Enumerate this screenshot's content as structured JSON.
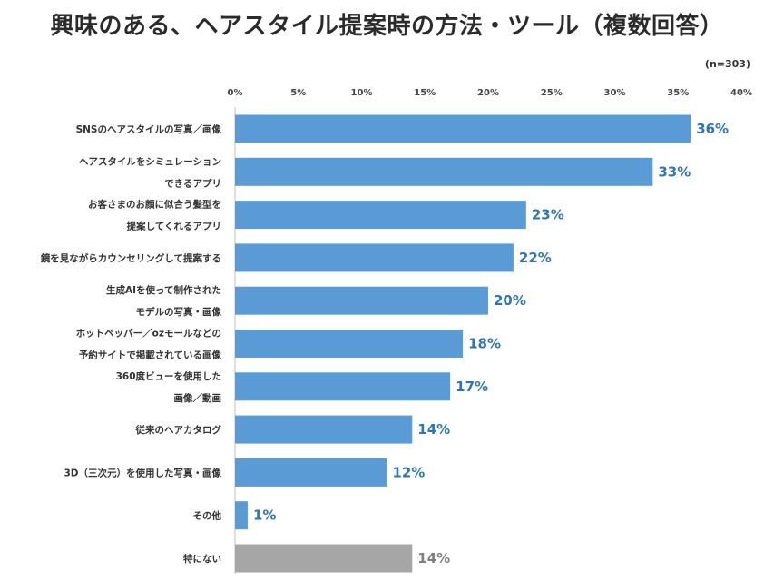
{
  "title": "興味のある、ヘアスタイル提案時の方法・ツール（複数回答）",
  "sample_note": "(n=303)",
  "colors": {
    "bar": "#5b9bd5",
    "bar_other": "#a6a6a6",
    "label": "#2e75b6",
    "label_other": "#7f7f7f",
    "axis": "#bfbfbf"
  },
  "chart_data": {
    "type": "bar",
    "orientation": "horizontal",
    "title": "興味のある、ヘアスタイル提案時の方法・ツール（複数回答）",
    "xlim": [
      0,
      40
    ],
    "xticks": [
      "0%",
      "5%",
      "10%",
      "15%",
      "20%",
      "25%",
      "30%",
      "35%",
      "40%"
    ],
    "grid": false,
    "categories": [
      [
        "SNSのヘアスタイルの写真／画像"
      ],
      [
        "ヘアスタイルをシミュレーション",
        "できるアプリ"
      ],
      [
        "お客さまのお顔に似合う髪型を",
        "提案してくれるアプリ"
      ],
      [
        "鏡を見ながらカウンセリングして提案する"
      ],
      [
        "生成AIを使って制作された",
        "モデルの写真・画像"
      ],
      [
        "ホットペッパー／ozモールなどの",
        "予約サイトで掲載されている画像"
      ],
      [
        "360度ビューを使用した",
        "画像／動画"
      ],
      [
        "従来のヘアカタログ"
      ],
      [
        "3D（三次元）を使用した写真・画像"
      ],
      [
        "その他"
      ],
      [
        "特にない"
      ]
    ],
    "values": [
      36,
      33,
      23,
      22,
      20,
      18,
      17,
      14,
      12,
      1,
      14
    ],
    "value_labels": [
      "36%",
      "33%",
      "23%",
      "22%",
      "20%",
      "18%",
      "17%",
      "14%",
      "12%",
      "1%",
      "14%"
    ],
    "highlight_gray_index": 10
  }
}
